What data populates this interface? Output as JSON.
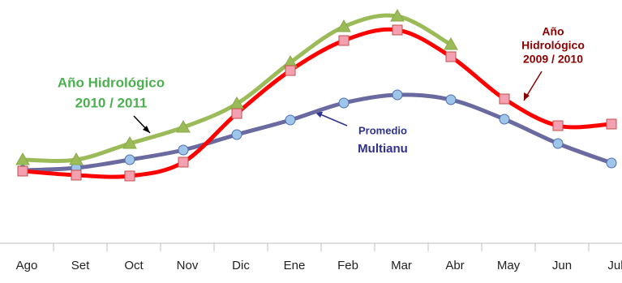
{
  "chart_data": {
    "type": "line",
    "categories": [
      "Ago",
      "Set",
      "Oct",
      "Nov",
      "Dic",
      "Ene",
      "Feb",
      "Mar",
      "Abr",
      "May",
      "Jun",
      "Jul"
    ],
    "series": [
      {
        "color": "#6a6aa0",
        "marker": "circle",
        "marker_fill": "#9fc5ea",
        "marker_stroke": "#4f6fb0",
        "values": [
          90,
          93,
          103,
          115,
          134,
          152,
          173,
          183,
          177,
          153,
          123,
          99
        ]
      },
      {
        "color": "#9bbb59",
        "marker": "triangle",
        "marker_fill": "#9bbb59",
        "marker_stroke": "#8aaa48",
        "values": [
          103,
          103,
          123,
          143,
          172,
          223,
          267,
          280,
          245,
          null,
          null,
          null
        ]
      },
      {
        "color": "#ff0000",
        "marker": "square",
        "marker_fill": "#f4a0b0",
        "marker_stroke": "#c0504d",
        "values": [
          89,
          84,
          83,
          100,
          160,
          213,
          250,
          263,
          230,
          178,
          145,
          147
        ]
      }
    ],
    "ylim": [
      0,
      300
    ],
    "annotations": [
      {
        "lines": [
          "Año Hidrológico",
          "2010 / 2011"
        ],
        "color": "#4caf50"
      },
      {
        "lines": [
          "Año",
          "Hidrológico",
          "2009 / 2010"
        ],
        "color": "#8b0000"
      },
      {
        "lines": [
          "Promedio",
          "Multianu"
        ],
        "color": "#2e3192"
      }
    ]
  }
}
